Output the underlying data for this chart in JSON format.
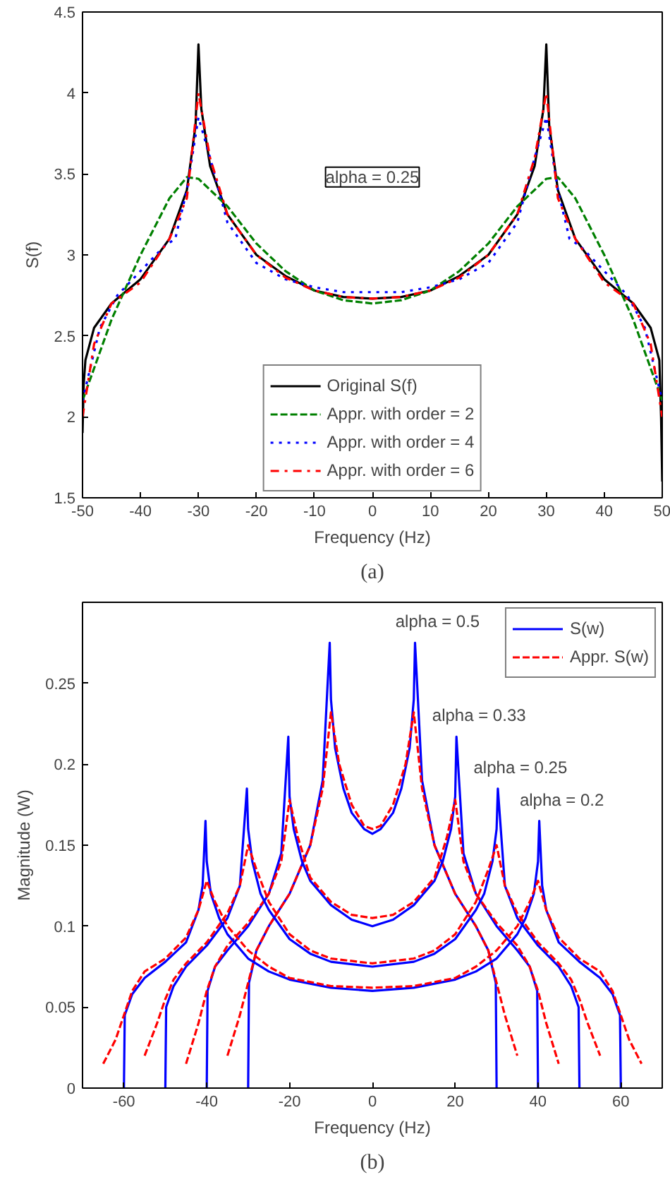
{
  "chart_data": [
    {
      "type": "line",
      "xlabel": "Frequency (Hz)",
      "ylabel": "S(f)",
      "xlim": [
        -50,
        50
      ],
      "ylim": [
        1.5,
        4.5
      ],
      "xticks": [
        -50,
        -40,
        -30,
        -20,
        -10,
        0,
        10,
        20,
        30,
        40,
        50
      ],
      "yticks": [
        1.5,
        2,
        2.5,
        3,
        3.5,
        4,
        4.5
      ],
      "legend": "bottom",
      "annotations": [
        "alpha = 0.25",
        "(a)"
      ],
      "series": [
        {
          "name": "Original S(f)",
          "color": "#000000",
          "line_style": "solid",
          "x": [
            -50,
            -49.8,
            -49.5,
            -48,
            -45,
            -40,
            -35,
            -32,
            -30.5,
            -30,
            -29.5,
            -28,
            -25,
            -20,
            -15,
            -10,
            -5,
            0,
            5,
            10,
            15,
            20,
            25,
            28,
            29.5,
            30,
            30.5,
            32,
            35,
            40,
            45,
            48,
            49.5,
            49.8,
            50
          ],
          "values": [
            1.9,
            2.2,
            2.35,
            2.55,
            2.7,
            2.85,
            3.1,
            3.4,
            3.8,
            4.3,
            3.9,
            3.55,
            3.25,
            3.0,
            2.87,
            2.78,
            2.74,
            2.73,
            2.74,
            2.78,
            2.87,
            3.0,
            3.25,
            3.55,
            3.9,
            4.3,
            3.8,
            3.4,
            3.1,
            2.85,
            2.7,
            2.55,
            2.35,
            2.0,
            1.6
          ]
        },
        {
          "name": "Appr. with order = 2",
          "color": "#008000",
          "line_style": "dashed",
          "x": [
            -50,
            -45,
            -40,
            -35,
            -32,
            -30,
            -25,
            -20,
            -15,
            -10,
            -5,
            0,
            5,
            10,
            15,
            20,
            25,
            30,
            32,
            35,
            40,
            45,
            50
          ],
          "values": [
            2.1,
            2.6,
            3.0,
            3.35,
            3.48,
            3.47,
            3.3,
            3.07,
            2.9,
            2.78,
            2.72,
            2.7,
            2.72,
            2.78,
            2.9,
            3.07,
            3.3,
            3.47,
            3.48,
            3.35,
            3.0,
            2.6,
            2.1
          ]
        },
        {
          "name": "Appr. with order = 4",
          "color": "#0000ff",
          "line_style": "dotted",
          "x": [
            -50,
            -47,
            -44,
            -40,
            -36,
            -34,
            -32,
            -30,
            -28,
            -25,
            -20,
            -15,
            -10,
            -5,
            0,
            5,
            10,
            15,
            20,
            25,
            28,
            30,
            32,
            34,
            36,
            40,
            44,
            47,
            50
          ],
          "values": [
            2.1,
            2.55,
            2.75,
            2.9,
            3.05,
            3.1,
            3.4,
            3.85,
            3.6,
            3.2,
            2.95,
            2.85,
            2.8,
            2.77,
            2.77,
            2.77,
            2.8,
            2.85,
            2.95,
            3.2,
            3.6,
            3.85,
            3.4,
            3.1,
            3.05,
            2.9,
            2.75,
            2.55,
            2.1
          ]
        },
        {
          "name": "Appr. with order = 6",
          "color": "#ff0000",
          "line_style": "dashdot",
          "x": [
            -50,
            -48,
            -45,
            -40,
            -35,
            -32,
            -30,
            -28,
            -25,
            -20,
            -15,
            -10,
            -5,
            0,
            5,
            10,
            15,
            20,
            25,
            28,
            30,
            32,
            35,
            40,
            45,
            48,
            50
          ],
          "values": [
            2.0,
            2.45,
            2.7,
            2.83,
            3.1,
            3.35,
            4.0,
            3.6,
            3.25,
            3.0,
            2.86,
            2.78,
            2.74,
            2.73,
            2.74,
            2.78,
            2.86,
            3.0,
            3.25,
            3.6,
            4.0,
            3.35,
            3.1,
            2.83,
            2.7,
            2.45,
            2.0
          ]
        }
      ]
    },
    {
      "type": "line",
      "xlabel": "Frequency (Hz)",
      "ylabel": "Magnitude (W)",
      "xlim": [
        -70,
        70
      ],
      "ylim": [
        0,
        0.3
      ],
      "xticks": [
        -60,
        -40,
        -20,
        0,
        20,
        40,
        60
      ],
      "yticks": [
        0,
        0.05,
        0.1,
        0.15,
        0.2,
        0.25
      ],
      "legend": "top right",
      "annotations": [
        {
          "text": "alpha = 0.5",
          "x": 10.3,
          "y": 0.275
        },
        {
          "text": "alpha = 0.33",
          "x": 20.3,
          "y": 0.217
        },
        {
          "text": "alpha = 0.25",
          "x": 30.3,
          "y": 0.185
        },
        {
          "text": "alpha = 0.2",
          "x": 40.3,
          "y": 0.165
        },
        "(b)"
      ],
      "series": [
        {
          "name": "S(w)",
          "color": "#0000ff",
          "line_style": "solid",
          "x": [
            -30,
            -29.8,
            -28,
            -25,
            -20,
            -15,
            -12,
            -10.3,
            -10,
            -9,
            -7,
            -5,
            -2,
            0,
            2,
            5,
            7,
            9,
            10,
            10.3,
            12,
            15,
            20,
            25,
            28,
            29.8,
            30
          ],
          "values": [
            0,
            0.065,
            0.085,
            0.1,
            0.12,
            0.15,
            0.19,
            0.275,
            0.24,
            0.21,
            0.185,
            0.17,
            0.16,
            0.157,
            0.16,
            0.17,
            0.185,
            0.21,
            0.24,
            0.275,
            0.19,
            0.15,
            0.12,
            0.1,
            0.085,
            0.065,
            0
          ]
        },
        {
          "name": "Appr. S(w)",
          "color": "#ff0000",
          "line_style": "dashed",
          "x": [
            -35,
            -32,
            -30,
            -28,
            -25,
            -20,
            -15,
            -12,
            -10,
            -8,
            -5,
            -2,
            0,
            2,
            5,
            8,
            10,
            12,
            15,
            20,
            25,
            28,
            30,
            32,
            35
          ],
          "values": [
            0.02,
            0.045,
            0.065,
            0.085,
            0.1,
            0.12,
            0.15,
            0.185,
            0.232,
            0.2,
            0.175,
            0.162,
            0.16,
            0.162,
            0.175,
            0.2,
            0.232,
            0.185,
            0.15,
            0.12,
            0.1,
            0.085,
            0.065,
            0.045,
            0.02
          ]
        },
        {
          "color": "#0000ff",
          "line_style": "solid",
          "x": [
            -40,
            -39.8,
            -38,
            -35,
            -30,
            -25,
            -22,
            -20.3,
            -20,
            -19,
            -17,
            -15,
            -10,
            -5,
            0,
            5,
            10,
            15,
            17,
            19,
            20,
            20.3,
            22,
            25,
            30,
            35,
            38,
            39.8,
            40
          ],
          "values": [
            0,
            0.06,
            0.075,
            0.085,
            0.1,
            0.12,
            0.145,
            0.217,
            0.18,
            0.16,
            0.14,
            0.128,
            0.113,
            0.104,
            0.1,
            0.104,
            0.113,
            0.128,
            0.14,
            0.16,
            0.18,
            0.217,
            0.145,
            0.12,
            0.1,
            0.085,
            0.075,
            0.06,
            0
          ]
        },
        {
          "color": "#ff0000",
          "line_style": "dashed",
          "x": [
            -45,
            -42,
            -40,
            -38,
            -35,
            -30,
            -25,
            -22,
            -20,
            -18,
            -15,
            -10,
            -5,
            0,
            5,
            10,
            15,
            18,
            20,
            22,
            25,
            30,
            35,
            38,
            40,
            42,
            45
          ],
          "values": [
            0.015,
            0.04,
            0.06,
            0.075,
            0.088,
            0.102,
            0.12,
            0.14,
            0.178,
            0.155,
            0.13,
            0.115,
            0.107,
            0.105,
            0.107,
            0.115,
            0.13,
            0.155,
            0.178,
            0.14,
            0.12,
            0.102,
            0.088,
            0.075,
            0.06,
            0.04,
            0.015
          ]
        },
        {
          "color": "#0000ff",
          "line_style": "solid",
          "x": [
            -50,
            -49.8,
            -48,
            -45,
            -40,
            -35,
            -32,
            -30.3,
            -30,
            -29,
            -27,
            -25,
            -20,
            -15,
            -10,
            0,
            10,
            15,
            20,
            25,
            27,
            29,
            30,
            30.3,
            32,
            35,
            40,
            45,
            48,
            49.8,
            50
          ],
          "values": [
            0,
            0.05,
            0.063,
            0.075,
            0.088,
            0.105,
            0.125,
            0.185,
            0.16,
            0.14,
            0.12,
            0.11,
            0.092,
            0.083,
            0.078,
            0.075,
            0.078,
            0.083,
            0.092,
            0.11,
            0.12,
            0.14,
            0.16,
            0.185,
            0.125,
            0.105,
            0.088,
            0.075,
            0.063,
            0.05,
            0
          ]
        },
        {
          "color": "#ff0000",
          "line_style": "dashed",
          "x": [
            -55,
            -52,
            -50,
            -48,
            -45,
            -40,
            -35,
            -32,
            -30,
            -28,
            -25,
            -20,
            -15,
            -10,
            0,
            10,
            15,
            20,
            25,
            28,
            30,
            32,
            35,
            40,
            45,
            48,
            50,
            52,
            55
          ],
          "values": [
            0.02,
            0.04,
            0.055,
            0.067,
            0.077,
            0.09,
            0.108,
            0.125,
            0.15,
            0.135,
            0.115,
            0.095,
            0.085,
            0.08,
            0.077,
            0.08,
            0.085,
            0.095,
            0.115,
            0.135,
            0.15,
            0.125,
            0.108,
            0.09,
            0.077,
            0.067,
            0.055,
            0.04,
            0.02
          ]
        },
        {
          "color": "#0000ff",
          "line_style": "solid",
          "x": [
            -60,
            -59.8,
            -58,
            -55,
            -50,
            -45,
            -42,
            -41,
            -40.3,
            -40,
            -39,
            -37,
            -35,
            -30,
            -25,
            -20,
            -10,
            0,
            10,
            20,
            25,
            30,
            35,
            37,
            39,
            40,
            40.3,
            41,
            42,
            45,
            50,
            55,
            58,
            59.8,
            60
          ],
          "values": [
            0,
            0.045,
            0.058,
            0.068,
            0.078,
            0.09,
            0.11,
            0.125,
            0.165,
            0.14,
            0.12,
            0.105,
            0.095,
            0.08,
            0.072,
            0.067,
            0.062,
            0.06,
            0.062,
            0.067,
            0.072,
            0.08,
            0.095,
            0.105,
            0.12,
            0.14,
            0.165,
            0.125,
            0.11,
            0.09,
            0.078,
            0.068,
            0.058,
            0.045,
            0
          ]
        },
        {
          "color": "#ff0000",
          "line_style": "dashed",
          "x": [
            -65,
            -62,
            -60,
            -58,
            -55,
            -50,
            -45,
            -42,
            -40,
            -38,
            -35,
            -30,
            -25,
            -20,
            -10,
            0,
            10,
            20,
            25,
            30,
            35,
            38,
            40,
            42,
            45,
            50,
            55,
            58,
            60,
            62,
            65
          ],
          "values": [
            0.015,
            0.03,
            0.045,
            0.06,
            0.072,
            0.08,
            0.093,
            0.11,
            0.128,
            0.115,
            0.1,
            0.085,
            0.075,
            0.068,
            0.063,
            0.062,
            0.063,
            0.068,
            0.075,
            0.085,
            0.1,
            0.115,
            0.128,
            0.11,
            0.093,
            0.08,
            0.072,
            0.06,
            0.045,
            0.03,
            0.015
          ]
        }
      ]
    }
  ]
}
